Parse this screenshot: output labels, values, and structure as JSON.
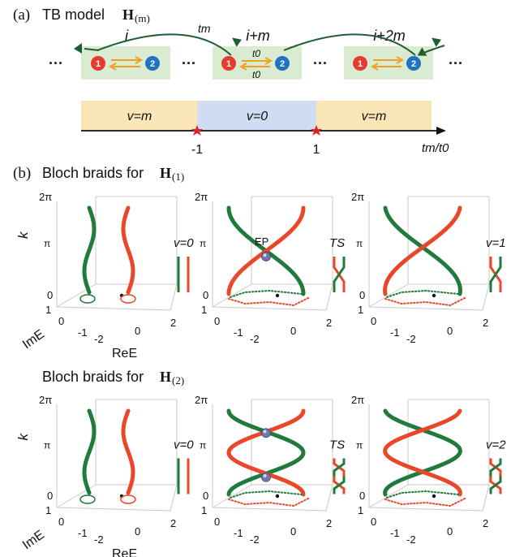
{
  "panel_a": {
    "label": "(a)",
    "title_prefix": "TB model",
    "title_symbol": "H",
    "title_sub": "(m)",
    "ellipsis": "···",
    "cells": [
      {
        "label": "i",
        "site1": "1",
        "site2": "2"
      },
      {
        "label": "i+m",
        "site1": "1",
        "site2": "2",
        "hop_top": "t0",
        "hop_bottom": "t0"
      },
      {
        "label": "i+2m",
        "site1": "1",
        "site2": "2"
      }
    ],
    "hop_long": "tm",
    "phase_bar": {
      "segments": [
        "v=m",
        "v=0",
        "v=m"
      ],
      "ticks": [
        "-1",
        "1"
      ],
      "axis_label": "tm/t0",
      "colors": [
        "#fbe6b8",
        "#cfdcf2",
        "#fbe6b8"
      ]
    }
  },
  "panel_b": {
    "label": "(b)",
    "title_prefix": "Bloch braids for",
    "title_symbol": "H",
    "title_sub": "(1)",
    "second_title_prefix": "Bloch braids for",
    "second_title_symbol": "H",
    "second_title_sub": "(2)",
    "axes": {
      "k_label": "k",
      "k_ticks": [
        "2π",
        "π",
        "0"
      ],
      "ime_label": "ImE",
      "ime_ticks": [
        "1",
        "0",
        "-1"
      ],
      "ree_label": "ReE",
      "ree_ticks": [
        "-2",
        "0",
        "2"
      ]
    },
    "row1": [
      {
        "annotation": "v=0",
        "braid": "unlinked",
        "ep_label": ""
      },
      {
        "annotation": "TS",
        "braid": "crossing-1",
        "ep_label": "EP"
      },
      {
        "annotation": "v=1",
        "braid": "crossing-1",
        "ep_label": ""
      }
    ],
    "row2": [
      {
        "annotation": "v=0",
        "braid": "unlinked"
      },
      {
        "annotation": "TS",
        "braid": "crossing-2"
      },
      {
        "annotation": "v=2",
        "braid": "crossing-2"
      }
    ]
  },
  "colors": {
    "green": "#1f7a3c",
    "red": "#e8472a",
    "orange": "#f0a020",
    "cell_bg": "#d9ecd2",
    "site_red": "#e63b2e",
    "site_blue": "#1f73c2",
    "star": "#e0202a"
  }
}
